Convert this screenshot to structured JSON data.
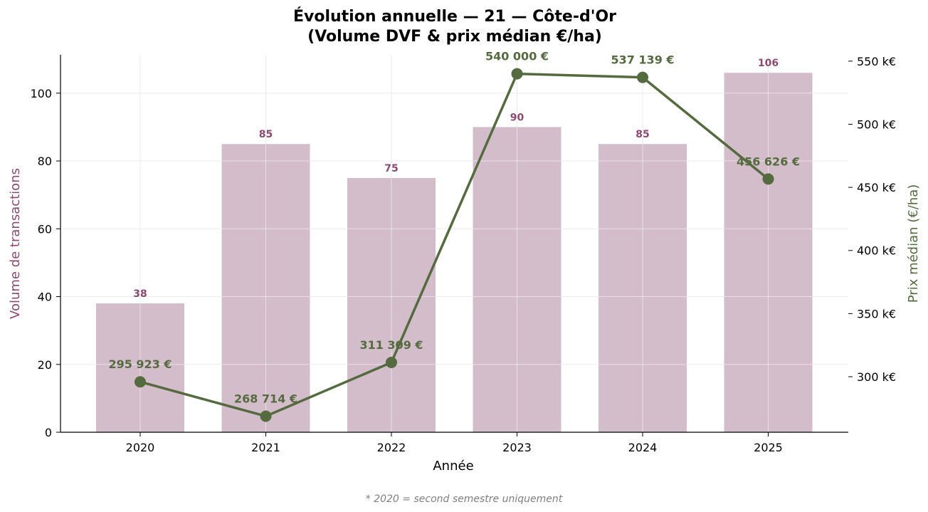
{
  "colors": {
    "bar": "#d4bdcb",
    "bar_label": "#8a4a72",
    "line": "#556b3f",
    "grid": "#ebebeb",
    "axis": "#000000",
    "footnote": "#808080"
  },
  "chart_data": {
    "type": "bar+line",
    "title_line1": "Évolution annuelle — 21 — Côte-d'Or",
    "title_line2": "(Volume DVF & prix médian €/ha)",
    "xlabel": "Année",
    "ylabel_left": "Volume de transactions",
    "ylabel_right": "Prix médian (€/ha)",
    "categories": [
      "2020",
      "2021",
      "2022",
      "2023",
      "2024",
      "2025"
    ],
    "bar_series": {
      "name": "Volume de transactions",
      "values": [
        38,
        85,
        75,
        90,
        85,
        106
      ],
      "labels": [
        "38",
        "85",
        "75",
        "90",
        "85",
        "106"
      ]
    },
    "line_series": {
      "name": "Prix médian (€/ha)",
      "values": [
        295923,
        268714,
        311309,
        540000,
        537139,
        456626
      ],
      "labels": [
        "295 923 €",
        "268 714 €",
        "311 309 €",
        "540 000 €",
        "537 139 €",
        "456 626 €"
      ]
    },
    "ylim_left": [
      0,
      111.3
    ],
    "yticks_left": [
      0,
      20,
      40,
      60,
      80,
      100
    ],
    "ytick_labels_left": [
      "0",
      "20",
      "40",
      "60",
      "80",
      "100"
    ],
    "ylim_right": [
      256000,
      555000
    ],
    "yticks_right": [
      300000,
      350000,
      400000,
      450000,
      500000,
      550000
    ],
    "ytick_labels_right": [
      "300 k€",
      "350 k€",
      "400 k€",
      "450 k€",
      "500 k€",
      "550 k€"
    ],
    "grid": true,
    "footnote": "* 2020 = second semestre uniquement"
  }
}
